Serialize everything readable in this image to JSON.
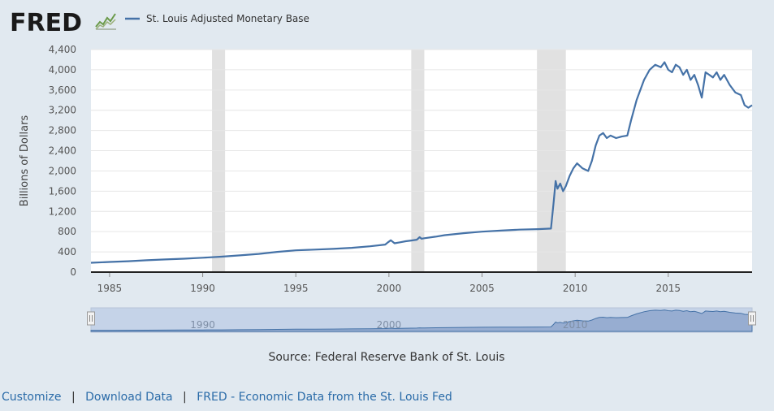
{
  "header": {
    "logo_text": "FRED",
    "logo_icon": "fred-chart-icon",
    "legend_label": "St. Louis Adjusted Monetary Base"
  },
  "chart_data": {
    "type": "line",
    "title": "",
    "xlabel": "",
    "ylabel": "Billions of Dollars",
    "xlim": [
      1984.0,
      2019.5
    ],
    "ylim": [
      0,
      4400
    ],
    "y_ticks": [
      0,
      400,
      800,
      1200,
      1600,
      2000,
      2400,
      2800,
      3200,
      3600,
      4000,
      4400
    ],
    "y_tick_labels": [
      "0",
      "400",
      "800",
      "1,200",
      "1,600",
      "2,000",
      "2,400",
      "2,800",
      "3,200",
      "3,600",
      "4,000",
      "4,400"
    ],
    "x_ticks": [
      1985,
      1990,
      1995,
      2000,
      2005,
      2010,
      2015
    ],
    "x_tick_labels": [
      "1985",
      "1990",
      "1995",
      "2000",
      "2005",
      "2010",
      "2015"
    ],
    "grid": true,
    "legend_position": "top-left",
    "recessions": [
      [
        1990.5,
        1991.2
      ],
      [
        2001.2,
        2001.9
      ],
      [
        2007.95,
        2009.5
      ]
    ],
    "series": [
      {
        "name": "St. Louis Adjusted Monetary Base",
        "color": "#4572a7",
        "x": [
          1984.0,
          1985.0,
          1986.0,
          1987.0,
          1988.0,
          1989.0,
          1990.0,
          1991.0,
          1992.0,
          1993.0,
          1994.0,
          1995.0,
          1996.0,
          1997.0,
          1998.0,
          1999.0,
          1999.8,
          1999.95,
          2000.1,
          2000.3,
          2000.6,
          2000.9,
          2001.2,
          2001.5,
          2001.65,
          2001.75,
          2001.9,
          2002.5,
          2003.0,
          2004.0,
          2005.0,
          2006.0,
          2007.0,
          2008.0,
          2008.7,
          2008.85,
          2008.95,
          2009.05,
          2009.2,
          2009.35,
          2009.5,
          2009.7,
          2009.9,
          2010.1,
          2010.4,
          2010.7,
          2010.9,
          2011.1,
          2011.3,
          2011.5,
          2011.7,
          2011.9,
          2012.2,
          2012.5,
          2012.8,
          2013.0,
          2013.3,
          2013.7,
          2014.0,
          2014.3,
          2014.6,
          2014.8,
          2015.0,
          2015.2,
          2015.4,
          2015.6,
          2015.8,
          2016.0,
          2016.2,
          2016.4,
          2016.6,
          2016.8,
          2017.0,
          2017.2,
          2017.4,
          2017.6,
          2017.8,
          2018.0,
          2018.3,
          2018.6,
          2018.9,
          2019.1,
          2019.3,
          2019.5
        ],
        "y": [
          185,
          200,
          215,
          235,
          250,
          265,
          285,
          305,
          330,
          360,
          400,
          430,
          445,
          460,
          480,
          510,
          545,
          590,
          630,
          570,
          590,
          610,
          625,
          640,
          690,
          660,
          670,
          700,
          730,
          770,
          800,
          820,
          840,
          850,
          860,
          1400,
          1800,
          1650,
          1750,
          1600,
          1700,
          1900,
          2050,
          2150,
          2050,
          2000,
          2200,
          2500,
          2700,
          2750,
          2650,
          2700,
          2650,
          2680,
          2700,
          3000,
          3400,
          3800,
          4000,
          4100,
          4050,
          4150,
          4000,
          3950,
          4100,
          4050,
          3900,
          4000,
          3800,
          3900,
          3700,
          3450,
          3950,
          3900,
          3850,
          3950,
          3800,
          3900,
          3700,
          3550,
          3500,
          3300,
          3250,
          3300
        ]
      }
    ]
  },
  "source_text": "Source: Federal Reserve Bank of St. Louis",
  "navigator": {
    "tick_labels": [
      "1990",
      "2000",
      "2010"
    ],
    "tick_years": [
      1990,
      2000,
      2010
    ]
  },
  "footer": {
    "customize": "Customize",
    "download": "Download Data",
    "separator": "|",
    "fred_link": "FRED - Economic Data from the St. Louis Fed"
  }
}
